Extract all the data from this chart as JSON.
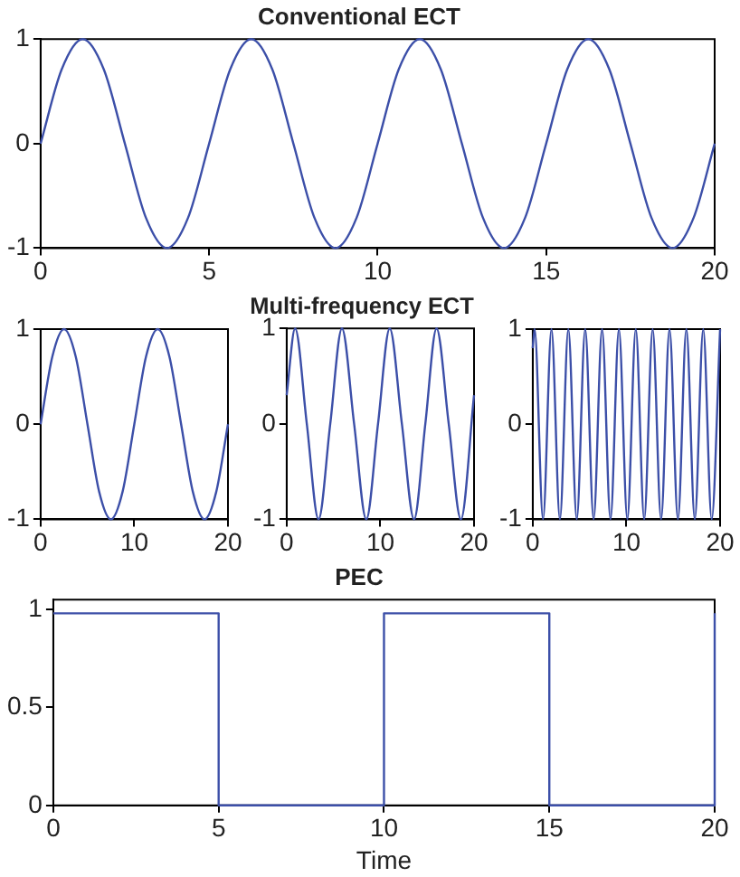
{
  "chart_data": [
    {
      "type": "line",
      "title": "Conventional ECT",
      "x": [
        0,
        0.625,
        1.25,
        1.875,
        2.5,
        3.125,
        3.75,
        4.375,
        5,
        5.625,
        6.25,
        6.875,
        7.5,
        8.125,
        8.75,
        9.375,
        10,
        10.625,
        11.25,
        11.875,
        12.5,
        13.125,
        13.75,
        14.375,
        15,
        15.625,
        16.25,
        16.875,
        17.5,
        18.125,
        18.75,
        19.375,
        20
      ],
      "series": [
        {
          "color": "#3c4fa8",
          "values": [
            0,
            0.71,
            1,
            0.71,
            0,
            -0.71,
            -1,
            -0.71,
            0,
            0.71,
            1,
            0.71,
            0,
            -0.71,
            -1,
            -0.71,
            0,
            0.71,
            1,
            0.71,
            0,
            -0.71,
            -1,
            -0.71,
            0,
            0.71,
            1,
            0.71,
            0,
            -0.71,
            -1,
            -0.71,
            0
          ]
        }
      ],
      "xlim": [
        0,
        20
      ],
      "ylim": [
        -1,
        1
      ],
      "xticks": [
        0,
        5,
        10,
        15,
        20
      ],
      "yticks": [
        -1,
        0,
        1
      ]
    },
    {
      "type": "line",
      "x": [
        0,
        1.25,
        2.5,
        3.75,
        5,
        6.25,
        7.5,
        8.75,
        10,
        11.25,
        12.5,
        13.75,
        15,
        16.25,
        17.5,
        18.75,
        20
      ],
      "series": [
        {
          "color": "#3c4fa8",
          "values": [
            0,
            0.71,
            1,
            0.71,
            0,
            -0.71,
            -1,
            -0.71,
            0,
            0.71,
            1,
            0.71,
            0,
            -0.71,
            -1,
            -0.71,
            0
          ]
        }
      ],
      "xlim": [
        0,
        20
      ],
      "ylim": [
        -1,
        1
      ],
      "xticks": [
        0,
        10,
        20
      ],
      "yticks": [
        -1,
        0,
        1
      ]
    },
    {
      "type": "line",
      "title": "Multi-frequency ECT",
      "x": [
        0,
        0.9,
        2.15,
        3.4,
        4.65,
        5.9,
        7.2,
        8.5,
        9.75,
        11,
        12.3,
        13.6,
        14.8,
        16,
        17.3,
        18.6,
        20
      ],
      "series": [
        {
          "color": "#3c4fa8",
          "values": [
            0.3,
            1,
            0,
            -1,
            0,
            1,
            0,
            -1,
            0,
            1,
            0,
            -1,
            0,
            1,
            0,
            -1,
            0.3
          ]
        }
      ],
      "xlim": [
        0,
        20
      ],
      "ylim": [
        -1,
        1
      ],
      "xticks": [
        0,
        10,
        20
      ],
      "yticks": [
        -1,
        0,
        1
      ]
    },
    {
      "type": "line",
      "x": [
        0,
        0.2,
        1.1,
        2,
        2.9,
        3.8,
        4.7,
        5.6,
        6.5,
        7.4,
        8.3,
        9.2,
        10.1,
        11,
        11.9,
        12.8,
        13.7,
        14.6,
        15.5,
        16.4,
        17.3,
        18.2,
        19.1,
        20
      ],
      "series": [
        {
          "color": "#3c4fa8",
          "values": [
            0.8,
            1,
            -1,
            1,
            -1,
            1,
            -1,
            1,
            -1,
            1,
            -1,
            1,
            -1,
            1,
            -1,
            1,
            -1,
            1,
            -1,
            1,
            -1,
            1,
            -1,
            1
          ]
        }
      ],
      "xlim": [
        0,
        20
      ],
      "ylim": [
        -1,
        1
      ],
      "xticks": [
        0,
        10,
        20
      ],
      "yticks": [
        -1,
        0,
        1
      ]
    },
    {
      "type": "line",
      "title": "PEC",
      "xlabel": "Time",
      "x": [
        0,
        5,
        5,
        10,
        10,
        15,
        15,
        20,
        20
      ],
      "series": [
        {
          "color": "#3c4fa8",
          "values": [
            0.98,
            0.98,
            0,
            0,
            0.98,
            0.98,
            0,
            0,
            0.98
          ]
        }
      ],
      "xlim": [
        0,
        20
      ],
      "ylim": [
        0,
        1.05
      ],
      "xticks": [
        0,
        5,
        10,
        15,
        20
      ],
      "yticks": [
        0,
        0.5,
        1
      ]
    }
  ]
}
